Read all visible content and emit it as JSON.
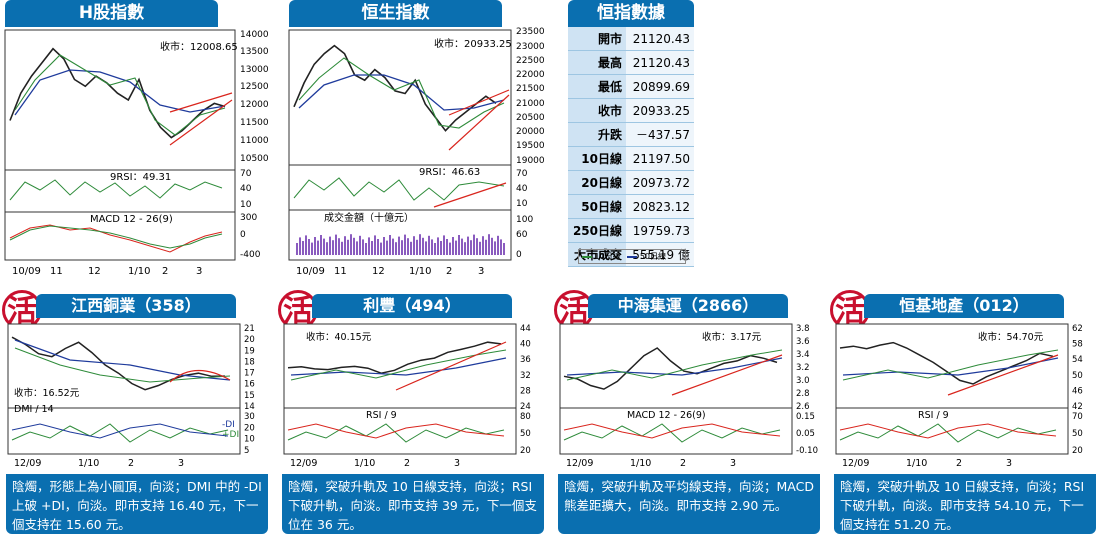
{
  "hsce": {
    "title": "H股指數",
    "close_label": "收市：12008.65",
    "rsi_label": "9RSI：49.31",
    "macd_label": "MACD 12 - 26(9)",
    "x_ticks": [
      "10/09",
      "11",
      "12",
      "1/10",
      "2",
      "3"
    ],
    "y_ticks": [
      "14000",
      "13500",
      "13000",
      "12500",
      "12000",
      "11500",
      "11000",
      "10500"
    ],
    "rsi_ticks": [
      "70",
      "40",
      "10"
    ],
    "macd_ticks": [
      "300",
      "0",
      "-400"
    ],
    "chart_data": {
      "type": "line",
      "series": [
        {
          "values": [
            11600,
            12400,
            12900,
            13300,
            13700,
            13400,
            12800,
            12600,
            12900,
            12700,
            12400,
            12200,
            12800,
            11900,
            11400,
            11100,
            11300,
            11600,
            11900,
            12100,
            12008.65
          ]
        }
      ],
      "ylim": [
        10300,
        14100
      ]
    }
  },
  "hsi": {
    "title": "恒生指數",
    "close_label": "收市：20933.25",
    "rsi_label": "9RSI：46.63",
    "turnover_label": "成交金額（十億元）",
    "x_ticks": [
      "10/09",
      "11",
      "12",
      "1/10",
      "2",
      "3"
    ],
    "y_ticks": [
      "23500",
      "23000",
      "22500",
      "22000",
      "21500",
      "21000",
      "20500",
      "20000",
      "19500",
      "19000"
    ],
    "rsi_ticks": [
      "70",
      "40",
      "10"
    ],
    "vol_ticks": [
      "100",
      "60",
      "0"
    ],
    "chart_data": {
      "type": "line",
      "series": [
        {
          "values": [
            20800,
            21700,
            22400,
            22800,
            23100,
            22800,
            22000,
            21800,
            22200,
            21900,
            21400,
            21300,
            21800,
            20900,
            20400,
            19900,
            20300,
            20600,
            20900,
            21200,
            20933.25
          ]
        }
      ],
      "ylim": [
        18800,
        23500
      ]
    }
  },
  "stats": {
    "title": "恒指數據",
    "rows": [
      {
        "k": "開市",
        "v": "21120.43"
      },
      {
        "k": "最高",
        "v": "21120.43"
      },
      {
        "k": "最低",
        "v": "20899.69"
      },
      {
        "k": "收市",
        "v": "20933.25"
      },
      {
        "k": "升跌",
        "v": "－437.57"
      },
      {
        "k": "10日線",
        "v": "21197.50"
      },
      {
        "k": "20日線",
        "v": "20973.72"
      },
      {
        "k": "50日線",
        "v": "20823.12"
      },
      {
        "k": "250日線",
        "v": "19759.73"
      },
      {
        "k": "大市成交",
        "v": "555.19 億"
      }
    ],
    "legend_10": "10日線",
    "legend_50": "50日線",
    "colors": {
      "ma10": "#2e8b3a",
      "ma50": "#1f3b9c"
    }
  },
  "stocks": [
    {
      "title": "江西銅業（358）",
      "close_label": "收市：16.52元",
      "indicator_label": "DMI / 14",
      "extra_labels": [
        "-DI",
        "+DI"
      ],
      "x_ticks": [
        "12/09",
        "1/10",
        "2",
        "3"
      ],
      "y_ticks": [
        "21",
        "20",
        "19",
        "18",
        "17",
        "16",
        "15",
        "14"
      ],
      "ind_ticks": [
        "30",
        "20",
        "10",
        "5"
      ],
      "chart_data": {
        "type": "line",
        "series": [
          {
            "values": [
              20.3,
              19.6,
              18.7,
              18.4,
              19.2,
              19.8,
              18.8,
              17.6,
              16.8,
              15.8,
              15.2,
              15.6,
              16.2,
              16.6,
              16.8,
              16.5,
              16.52
            ]
          }
        ],
        "ylim": [
          14,
          21
        ]
      },
      "desc": "陰燭，形態上為小圓頂，向淡；DMI 中的 -DI 上破 +DI，向淡。即市支持 16.40 元，下一個支持在 15.60 元。"
    },
    {
      "title": "利豐（494）",
      "close_label": "收市：40.15元",
      "indicator_label": "RSI / 9",
      "extra_labels": [],
      "x_ticks": [
        "12/09",
        "1/10",
        "2",
        "3"
      ],
      "y_ticks": [
        "44",
        "40",
        "36",
        "32",
        "28",
        "24"
      ],
      "ind_ticks": [
        "80",
        "50",
        "20"
      ],
      "chart_data": {
        "type": "line",
        "series": [
          {
            "values": [
              33.5,
              33.8,
              33.2,
              33.0,
              33.6,
              33.9,
              33.4,
              32.0,
              32.8,
              34.5,
              35.6,
              36.2,
              37.8,
              38.6,
              39.5,
              40.6,
              40.15
            ]
          }
        ],
        "ylim": [
          24,
          44
        ]
      },
      "desc": "陰燭，突破升軌及 10 日線支持，向淡；RSI 下破升軌，向淡。即市支持 39 元，下一個支位在 36 元。"
    },
    {
      "title": "中海集運（2866）",
      "close_label": "收市：3.17元",
      "indicator_label": "MACD 12 - 26(9)",
      "extra_labels": [],
      "x_ticks": [
        "12/09",
        "1/10",
        "2",
        "3"
      ],
      "y_ticks": [
        "3.8",
        "3.6",
        "3.4",
        "3.2",
        "3.0",
        "2.8",
        "2.6"
      ],
      "ind_ticks": [
        "0.15",
        "0.05",
        "-0.10"
      ],
      "chart_data": {
        "type": "line",
        "series": [
          {
            "values": [
              2.9,
              2.85,
              2.72,
              2.65,
              2.8,
              3.05,
              3.3,
              3.45,
              3.2,
              3.0,
              2.95,
              3.05,
              3.15,
              3.2,
              3.3,
              3.25,
              3.17
            ]
          }
        ],
        "ylim": [
          2.4,
          3.8
        ]
      },
      "desc": "陰燭，突破升軌及平均線支持，向淡；MACD 熊差距擴大，向淡。即市支持 2.90 元。"
    },
    {
      "title": "恒基地產（012）",
      "close_label": "收市：54.70元",
      "indicator_label": "RSI / 9",
      "extra_labels": [],
      "x_ticks": [
        "12/09",
        "1/10",
        "2",
        "3"
      ],
      "y_ticks": [
        "62",
        "58",
        "54",
        "50",
        "46",
        "42"
      ],
      "ind_ticks": [
        "70",
        "50",
        "20"
      ],
      "chart_data": {
        "type": "line",
        "series": [
          {
            "values": [
              57.0,
              57.5,
              56.8,
              57.8,
              58.5,
              57.0,
              55.0,
              53.0,
              50.5,
              48.0,
              47.0,
              49.0,
              50.5,
              52.0,
              53.5,
              55.5,
              54.7
            ]
          }
        ],
        "ylim": [
          42,
          62
        ]
      },
      "desc": "陰燭，突破升軌及 10 日線支持，向淡；RSI 下破升軌，向淡。即市支持 54.10 元，下一個支持在 51.20 元。"
    }
  ]
}
